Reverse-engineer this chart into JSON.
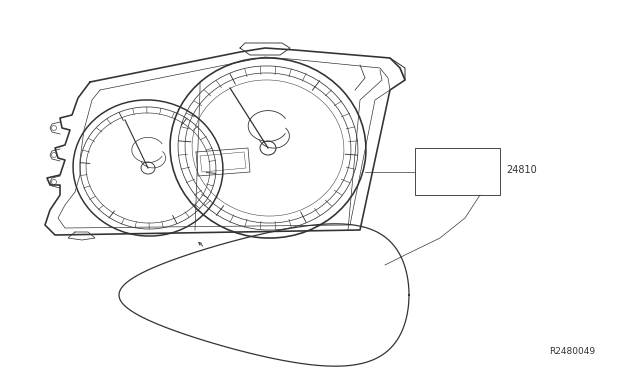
{
  "bg_color": "#ffffff",
  "line_color": "#333333",
  "label_24810": "24810",
  "label_r2480049": "R2480049",
  "annotation_fontsize": 7.0,
  "ref_fontsize": 6.5
}
